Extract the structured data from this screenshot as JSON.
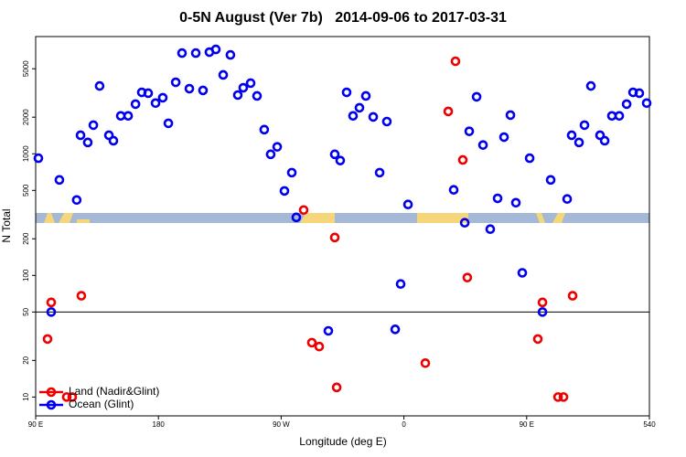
{
  "chart_data": {
    "type": "scatter",
    "title": "0-5N August (Ver 7b)   2014-09-06 to 2017-03-31",
    "x_label": "Longitude (deg E)",
    "y_label": "N Total",
    "log_y": true,
    "xlim": [
      90,
      540
    ],
    "ylim": [
      7,
      9200
    ],
    "xticks": [
      {
        "value": 90,
        "label": "90 E"
      },
      180,
      {
        "value": 270,
        "label": "90 W"
      },
      {
        "value": 360,
        "label": "0"
      },
      {
        "value": 450,
        "label": "90 E"
      },
      540
    ],
    "yticks": [
      10,
      20,
      50,
      100,
      200,
      500,
      1000,
      2000,
      5000
    ],
    "reference_line": 50,
    "legend": "bottomleft",
    "series": [
      {
        "name": "Land (Nadir&Glint)",
        "color": "#ee0000",
        "x": [
          98.7,
          101.4,
          112.8,
          116.8,
          123.5,
          286.5,
          292.5,
          297.9,
          309.3,
          310.7,
          375.7,
          392.5,
          397.8,
          403.2,
          406.5,
          458.2,
          461.6,
          473.0,
          477.0,
          483.7
        ],
        "values": [
          30,
          60,
          10,
          10,
          68,
          345,
          28,
          26,
          205,
          12,
          19,
          2230,
          5760,
          890,
          96,
          30,
          60,
          10,
          10,
          68
        ]
      },
      {
        "name": "Ocean (Glint)",
        "color": "#0000ee",
        "x": [
          92.0,
          101.4,
          107.4,
          120.1,
          122.9,
          128.2,
          132.3,
          136.9,
          143.7,
          147.0,
          152.4,
          157.8,
          163.2,
          167.8,
          172.5,
          177.9,
          183.2,
          187.3,
          192.7,
          197.3,
          202.7,
          207.4,
          212.7,
          217.4,
          222.1,
          227.5,
          232.8,
          238.2,
          242.2,
          247.6,
          252.3,
          257.6,
          262.3,
          267.1,
          272.4,
          277.8,
          281.1,
          304.6,
          309.3,
          313.3,
          318.0,
          322.7,
          327.4,
          332.1,
          337.5,
          342.2,
          347.5,
          353.6,
          357.6,
          363.0,
          396.5,
          404.6,
          407.9,
          413.3,
          418.0,
          423.3,
          428.7,
          433.4,
          438.1,
          442.1,
          446.8,
          452.2,
          461.6,
          467.6,
          479.7,
          483.0,
          488.4,
          492.4,
          497.1,
          503.8,
          507.2,
          512.5,
          517.9,
          523.3,
          528.0,
          532.6,
          538.0
        ],
        "values": [
          920,
          50,
          610,
          417,
          1420,
          1240,
          1720,
          3610,
          1420,
          1280,
          2050,
          2050,
          2560,
          3200,
          3150,
          2610,
          2890,
          1780,
          3870,
          6730,
          3430,
          6730,
          3320,
          6850,
          7210,
          4450,
          6500,
          3040,
          3490,
          3810,
          2990,
          1580,
          990,
          1140,
          495,
          700,
          300,
          35,
          990,
          880,
          3200,
          2050,
          2390,
          2990,
          2010,
          700,
          1840,
          36,
          85,
          383,
          505,
          271,
          1530,
          2940,
          1180,
          240,
          430,
          1370,
          2080,
          396,
          105,
          920,
          50,
          610,
          425,
          1420,
          1240,
          1720,
          3610,
          1420,
          1280,
          2050,
          2050,
          2560,
          3200,
          3150,
          2610
        ]
      }
    ]
  }
}
